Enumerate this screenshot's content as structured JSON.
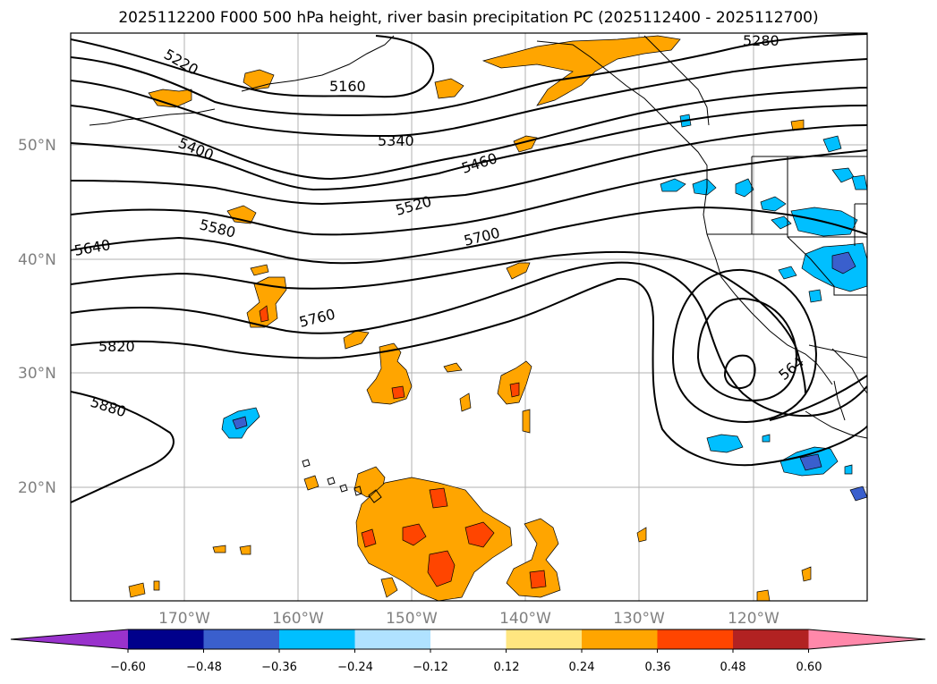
{
  "title": "2025112200 F000 500 hPa height, river basin precipitation PC (2025112400 - 2025112700)",
  "map": {
    "lat_labels": [
      "50°N",
      "40°N",
      "30°N",
      "20°N"
    ],
    "lon_labels": [
      "170°W",
      "160°W",
      "150°W",
      "140°W",
      "130°W",
      "120°W"
    ],
    "contour_labels": [
      "5220",
      "5160",
      "5280",
      "5340",
      "5400",
      "5460",
      "5520",
      "5580",
      "5640",
      "5700",
      "5760",
      "5820",
      "5880",
      "564"
    ],
    "colors": {
      "contour": "#000000",
      "gridline": "#b0b0b0",
      "positive_light": "#ffa500",
      "positive_mid": "#ff4500",
      "positive_dark": "#b22222",
      "negative_light": "#00bfff",
      "negative_mid": "#4169e1",
      "coastline": "#000000"
    }
  },
  "colorbar": {
    "ticks": [
      "−0.60",
      "−0.48",
      "−0.36",
      "−0.24",
      "−0.12",
      "0.12",
      "0.24",
      "0.36",
      "0.48",
      "0.60"
    ],
    "bins": [
      {
        "color": "#9932cc"
      },
      {
        "color": "#00008b"
      },
      {
        "color": "#3a5fcd"
      },
      {
        "color": "#00bfff"
      },
      {
        "color": "#b0e2ff"
      },
      {
        "color": "#ffffff"
      },
      {
        "color": "#ffe680"
      },
      {
        "color": "#ffa500"
      },
      {
        "color": "#ff4500"
      },
      {
        "color": "#b22222"
      },
      {
        "color": "#ff88aa"
      }
    ]
  }
}
